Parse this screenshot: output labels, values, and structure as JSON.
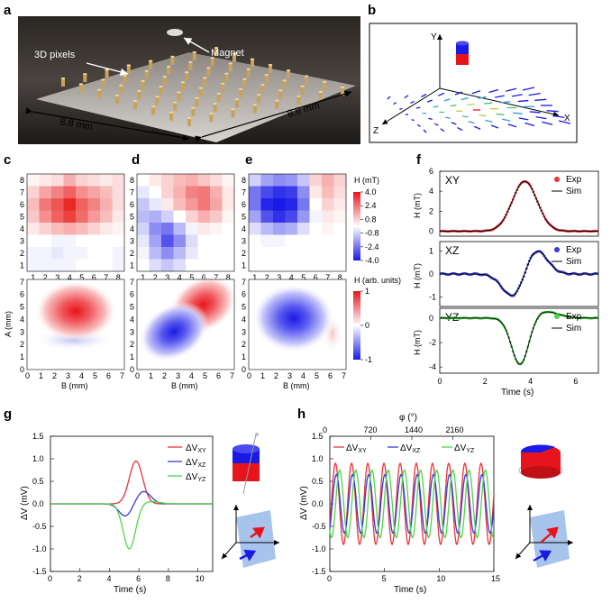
{
  "panels": {
    "a": "a",
    "b": "b",
    "c": "c",
    "d": "d",
    "e": "e",
    "f": "f",
    "g": "g",
    "h": "h"
  },
  "photo": {
    "pixels_label": "3D pixels",
    "magnet_label": "Magnet",
    "dim_left": "8.8 mm",
    "dim_right": "8.8 mm"
  },
  "axes3d": {
    "x": "X",
    "y": "Y",
    "z": "Z"
  },
  "heatmaps": {
    "grid_ticks": [
      "1",
      "2",
      "3",
      "4",
      "5",
      "6",
      "7",
      "8"
    ],
    "sim_y_ticks": [
      "0",
      "1",
      "2",
      "3",
      "4",
      "5",
      "6",
      "7"
    ],
    "sim_x_ticks": [
      "0",
      "1",
      "2",
      "3",
      "4",
      "5",
      "6",
      "7"
    ],
    "sim_xlabel": "B (mm)",
    "sim_ylabel": "A (mm)",
    "cbar_top": {
      "title": "H (mT)",
      "ticks": [
        "4.0",
        "2.4",
        "0.8",
        "-0.8",
        "-2.4",
        "-4.0"
      ]
    },
    "cbar_bottom": {
      "title": "H (arb. units)",
      "ticks": [
        "1",
        "0",
        "-1"
      ]
    },
    "colors": {
      "pos": "#e8141b",
      "neg": "#1a1ae6",
      "zero": "#ffffff"
    }
  },
  "chart_data": [
    {
      "type": "line",
      "panel": "f",
      "rows": [
        {
          "label": "XY",
          "yticks": [
            "6",
            "4",
            "2",
            "0"
          ],
          "ylim": [
            -0.5,
            6
          ],
          "series": [
            {
              "name": "Exp",
              "color": "#e8343a"
            },
            {
              "name": "Sim",
              "color": "#000000"
            }
          ]
        },
        {
          "label": "XZ",
          "yticks": [
            "1",
            "0",
            "-1"
          ],
          "ylim": [
            -1.4,
            1.4
          ],
          "series": [
            {
              "name": "Exp",
              "color": "#3a3ad8"
            },
            {
              "name": "Sim",
              "color": "#000000"
            }
          ]
        },
        {
          "label": "YZ",
          "yticks": [
            "0",
            "-2",
            "-4"
          ],
          "ylim": [
            -4.5,
            0.8
          ],
          "series": [
            {
              "name": "Exp",
              "color": "#4cd64c"
            },
            {
              "name": "Sim",
              "color": "#000000"
            }
          ]
        }
      ],
      "xticks": [
        "0",
        "2",
        "4",
        "6"
      ],
      "xlim": [
        0,
        7
      ],
      "xlabel": "Time (s)",
      "ylabel": "H (mT)"
    },
    {
      "type": "line",
      "panel": "g",
      "xlabel": "Time (s)",
      "ylabel": "ΔV (mV)",
      "xlim": [
        0,
        11
      ],
      "ylim": [
        -1.5,
        1.5
      ],
      "xticks": [
        "0",
        "2",
        "4",
        "6",
        "8",
        "10"
      ],
      "yticks": [
        "1.5",
        "1.0",
        "0.5",
        "0.0",
        "-0.5",
        "-1.0",
        "-1.5"
      ],
      "series": [
        {
          "name": "ΔV",
          "sub": "XY",
          "color": "#e8343a"
        },
        {
          "name": "ΔV",
          "sub": "XZ",
          "color": "#3a3ad8"
        },
        {
          "name": "ΔV",
          "sub": "YZ",
          "color": "#4cd64c"
        }
      ]
    },
    {
      "type": "line",
      "panel": "h",
      "xlabel": "Time (s)",
      "ylabel": "ΔV (mV)",
      "top_label": "φ (°)",
      "xlim": [
        0,
        15
      ],
      "ylim": [
        -1.5,
        1.5
      ],
      "xticks": [
        "0",
        "5",
        "10",
        "15"
      ],
      "top_ticks": [
        "0",
        "720",
        "1440",
        "2160"
      ],
      "yticks": [
        "1.5",
        "1.0",
        "0.5",
        "0.0",
        "-0.5",
        "-1.0",
        "-1.5"
      ],
      "series": [
        {
          "name": "ΔV",
          "sub": "XY",
          "color": "#e8343a"
        },
        {
          "name": "ΔV",
          "sub": "XZ",
          "color": "#3a3ad8"
        },
        {
          "name": "ΔV",
          "sub": "YZ",
          "color": "#4cd64c"
        }
      ]
    }
  ]
}
